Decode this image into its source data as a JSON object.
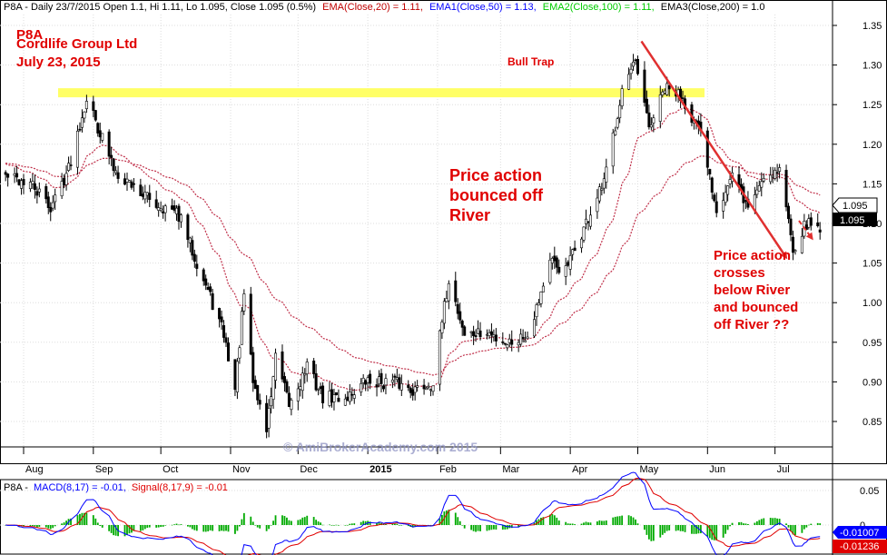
{
  "header": {
    "symbol_info": "P8A - Daily 23/7/2015 Open 1.1, Hi 1.11, Lo 1.095, Close 1.095 (0.5%)",
    "ema20": "EMA(Close,20) = 1.11,",
    "ema50": "EMA1(Close,50) = 1.13,",
    "ema100": "EMA2(Close,100) = 1.11,",
    "ema200": "EMA3(Close,200) = 1.0"
  },
  "macd_header": {
    "prefix": "P8A -",
    "macd": "MACD(8,17) = -0.01,",
    "signal": "Signal(8,17,9) = -0.01"
  },
  "annotations": {
    "title_1": "P8A",
    "title_2": "Cordlife Group Ltd",
    "title_3": "July 23, 2015",
    "bull_trap": "Bull Trap",
    "river_1_l1": "Price action",
    "river_1_l2": "bounced off",
    "river_1_l3": "River",
    "river_2_l1": "Price action",
    "river_2_l2": "crosses",
    "river_2_l3": "below River",
    "river_2_l4": "and bounced",
    "river_2_l5": "off River ??",
    "watermark": "© AmiBrokerAcademy.com 2015"
  },
  "tags": {
    "price_a": "1.095",
    "price_b": "1.095",
    "macd_a": "-0.01007",
    "macd_b": "-0.01236"
  },
  "colors": {
    "text": "#000000",
    "ema20": "#c00000",
    "ema50": "#0000ff",
    "ema100": "#00cc00",
    "annotation": "#e00000",
    "bull_trap_band": "#ffff66",
    "river_line": "#c0304a",
    "trend_arrow": "#e03030",
    "macd_line": "#0000ff",
    "signal_line": "#e00000",
    "histogram": "#00aa00",
    "grid": "#dddddd"
  },
  "chart_data": [
    {
      "type": "candlestick",
      "title": "P8A - Daily 23/7/2015",
      "x_labels": [
        "Aug",
        "Sep",
        "Oct",
        "Nov",
        "Dec",
        "2015",
        "Feb",
        "Mar",
        "Apr",
        "May",
        "Jun",
        "Jul"
      ],
      "y_ticks": [
        "0.85",
        "0.90",
        "0.95",
        "1.00",
        "1.05",
        "1.10",
        "1.15",
        "1.20",
        "1.25",
        "1.30",
        "1.35"
      ],
      "ylim": [
        0.8,
        1.37
      ],
      "close_series": {
        "start": "2014-07-24",
        "end": "2015-07-23",
        "anchor_dates": [
          "2014-07-24",
          "2014-08-04",
          "2014-08-13",
          "2014-08-21",
          "2014-08-29",
          "2014-09-10",
          "2014-09-26",
          "2014-10-09",
          "2014-10-20",
          "2014-10-29",
          "2014-11-03",
          "2014-11-07",
          "2014-11-11",
          "2014-11-17",
          "2014-11-21",
          "2014-11-27",
          "2014-12-05",
          "2014-12-12",
          "2014-12-22",
          "2014-12-31",
          "2015-01-12",
          "2015-01-22",
          "2015-01-30",
          "2015-02-06",
          "2015-02-13",
          "2015-02-24",
          "2015-03-04",
          "2015-03-13",
          "2015-03-23",
          "2015-03-30",
          "2015-04-08",
          "2015-04-16",
          "2015-04-24",
          "2015-04-30",
          "2015-05-06",
          "2015-05-13",
          "2015-05-21",
          "2015-05-29",
          "2015-06-05",
          "2015-06-12",
          "2015-06-19",
          "2015-06-26",
          "2015-07-03",
          "2015-07-09",
          "2015-07-15",
          "2015-07-23"
        ],
        "anchor_closes": [
          1.16,
          1.15,
          1.12,
          1.17,
          1.26,
          1.17,
          1.13,
          1.11,
          1.03,
          0.96,
          0.89,
          1.01,
          0.9,
          0.84,
          0.93,
          0.87,
          0.92,
          0.88,
          0.88,
          0.9,
          0.9,
          0.89,
          0.9,
          1.03,
          0.96,
          0.96,
          0.95,
          0.96,
          1.05,
          1.04,
          1.1,
          1.15,
          1.27,
          1.3,
          1.22,
          1.27,
          1.26,
          1.21,
          1.12,
          1.16,
          1.12,
          1.16,
          1.17,
          1.07,
          1.1,
          1.095
        ]
      },
      "last_bar": {
        "date": "2015-07-23",
        "open": 1.1,
        "high": 1.11,
        "low": 1.095,
        "close": 1.095,
        "change_pct": 0.5
      },
      "moving_averages": [
        {
          "name": "EMA(Close,20)",
          "last": 1.11
        },
        {
          "name": "EMA1(Close,50)",
          "last": 1.13
        },
        {
          "name": "EMA2(Close,100)",
          "last": 1.11
        },
        {
          "name": "EMA3(Close,200)",
          "last": 1.0
        }
      ],
      "river_bands_periods": [
        20,
        50
      ],
      "bull_trap_level": 1.265,
      "trend_line": {
        "from": [
          "2015-05-01",
          1.33
        ],
        "to": [
          "2015-07-05",
          1.06
        ]
      },
      "grid": true
    },
    {
      "type": "line",
      "title": "MACD(8,17) / Signal(8,17,9)",
      "y_ticks": [
        "-0.05",
        "0",
        "0.05"
      ],
      "ylim": [
        -0.065,
        0.07
      ],
      "series": [
        {
          "name": "MACD(8,17)",
          "last": -0.01007
        },
        {
          "name": "Signal(8,17,9)",
          "last": -0.01236
        }
      ],
      "histogram": "MACD minus Signal"
    }
  ]
}
